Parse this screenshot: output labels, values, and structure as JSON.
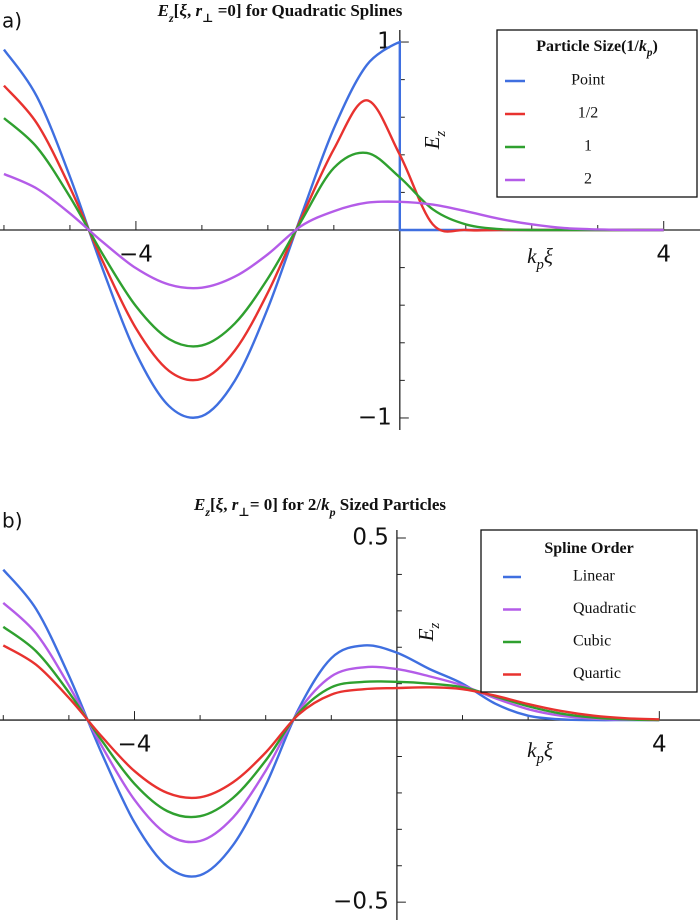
{
  "chart_data": [
    {
      "type": "line",
      "panel_label": "a)",
      "title": [
        {
          "text": "E",
          "italic": true
        },
        {
          "text": "z",
          "sub": true,
          "italic": true
        },
        {
          "text": "["
        },
        {
          "text": "ξ",
          "italic": true
        },
        {
          "text": ", "
        },
        {
          "text": "r",
          "italic": true
        },
        {
          "text": "⊥",
          "sub": true
        },
        {
          "text": " =0] for Quadratic Splines"
        }
      ],
      "x_label": [
        {
          "text": "k",
          "italic": true
        },
        {
          "text": "p",
          "sub": true,
          "italic": true
        },
        {
          "text": "ξ",
          "italic": true
        }
      ],
      "y_label": [
        {
          "text": "E",
          "italic": true
        },
        {
          "text": "z",
          "sub": true,
          "italic": true
        }
      ],
      "legend_title": [
        {
          "text": "Particle Size(1/"
        },
        {
          "text": "k",
          "italic": true
        },
        {
          "text": "p",
          "sub": true,
          "italic": true
        },
        {
          "text": ")"
        }
      ],
      "legend": "top-right",
      "xlim": [
        -6.06,
        4.55
      ],
      "ylim": [
        -1.064,
        1.064
      ],
      "xticks": [
        {
          "value": -4,
          "label": "−4"
        },
        4
      ],
      "yticks": [
        {
          "value": -1,
          "label": "−1"
        },
        1
      ],
      "minor_xticks": [
        -6,
        -5,
        -3,
        -2,
        -1,
        1,
        2,
        3
      ],
      "minor_yticks": [
        -0.8,
        -0.6,
        -0.4,
        -0.2,
        0.2,
        0.4,
        0.6,
        0.8
      ],
      "x": [
        -6,
        -5.5,
        -5,
        -4.5,
        -4,
        -3.5,
        -3,
        -2.5,
        -2,
        -1.5,
        -1,
        -0.5,
        0,
        0.5,
        1,
        1.5,
        2,
        2.5,
        3,
        3.5,
        4
      ],
      "series": [
        {
          "name": "Point",
          "color": "#3f6fe0",
          "x": [
            -6,
            -5.5,
            -5,
            -4.5,
            -4,
            -3.5,
            -3,
            -2.5,
            -2,
            -1.5,
            -1,
            -0.5,
            0,
            0,
            0.5,
            1,
            1.5,
            2,
            2.5,
            3,
            3.5,
            4
          ],
          "values": [
            0.96,
            0.709,
            0.284,
            -0.211,
            -0.654,
            -0.936,
            -0.99,
            -0.801,
            -0.416,
            0.071,
            0.54,
            0.878,
            1,
            0,
            0,
            0,
            0,
            0,
            0,
            0,
            0,
            0
          ]
        },
        {
          "name": "1/2",
          "color": "#e8322f",
          "values": [
            0.768,
            0.567,
            0.227,
            -0.169,
            -0.523,
            -0.749,
            -0.792,
            -0.641,
            -0.333,
            0.057,
            0.43,
            0.69,
            0.4,
            0.03,
            0,
            0,
            0,
            0,
            0,
            0,
            0
          ]
        },
        {
          "name": "1",
          "color": "#2fa02f",
          "values": [
            0.595,
            0.44,
            0.176,
            -0.131,
            -0.405,
            -0.58,
            -0.614,
            -0.497,
            -0.258,
            0.044,
            0.33,
            0.41,
            0.28,
            0.11,
            0.03,
            0.005,
            0,
            0,
            0,
            0,
            0
          ]
        },
        {
          "name": "2",
          "color": "#b45ce8",
          "values": [
            0.298,
            0.22,
            0.088,
            -0.065,
            -0.203,
            -0.29,
            -0.307,
            -0.248,
            -0.129,
            0.02,
            0.1,
            0.145,
            0.15,
            0.135,
            0.1,
            0.06,
            0.03,
            0.01,
            0.003,
            0,
            0
          ]
        }
      ]
    },
    {
      "type": "line",
      "panel_label": "b)",
      "title": [
        {
          "text": "E",
          "italic": true
        },
        {
          "text": "z",
          "sub": true,
          "italic": true
        },
        {
          "text": "["
        },
        {
          "text": "ξ",
          "italic": true
        },
        {
          "text": ", "
        },
        {
          "text": "r",
          "italic": true
        },
        {
          "text": "⊥",
          "sub": true
        },
        {
          "text": "= 0] for 2/"
        },
        {
          "text": "k",
          "italic": true
        },
        {
          "text": "p",
          "sub": true,
          "italic": true
        },
        {
          "text": " Sized Particles"
        }
      ],
      "x_label": [
        {
          "text": "k",
          "italic": true
        },
        {
          "text": "p",
          "sub": true,
          "italic": true
        },
        {
          "text": "ξ",
          "italic": true
        }
      ],
      "y_label": [
        {
          "text": "E",
          "italic": true
        },
        {
          "text": "z",
          "sub": true,
          "italic": true
        }
      ],
      "legend_title": [
        {
          "text": "Spline Order"
        }
      ],
      "legend": "top-right",
      "xlim": [
        -6.05,
        4.62
      ],
      "ylim": [
        -0.549,
        0.522
      ],
      "xticks": [
        {
          "value": -4,
          "label": "−4"
        },
        4
      ],
      "yticks": [
        {
          "value": -0.5,
          "label": "−0.5"
        },
        0.5
      ],
      "minor_xticks": [
        -6,
        -5,
        -3,
        -2,
        -1,
        1,
        2,
        3
      ],
      "minor_yticks": [
        -0.4,
        -0.3,
        -0.2,
        -0.1,
        0.1,
        0.2,
        0.3,
        0.4
      ],
      "x": [
        -6,
        -5.5,
        -5,
        -4.5,
        -4,
        -3.5,
        -3,
        -2.5,
        -2,
        -1.5,
        -1,
        -0.5,
        0,
        0.5,
        1,
        1.5,
        2,
        2.5,
        3,
        3.5,
        4
      ],
      "series": [
        {
          "name": "Linear",
          "color": "#3f6fe0",
          "values": [
            0.413,
            0.305,
            0.122,
            -0.091,
            -0.281,
            -0.402,
            -0.426,
            -0.344,
            -0.179,
            0.03,
            0.17,
            0.205,
            0.185,
            0.14,
            0.1,
            0.045,
            0.012,
            0.002,
            0,
            0,
            0
          ]
        },
        {
          "name": "Quadratic",
          "color": "#b45ce8",
          "values": [
            0.322,
            0.238,
            0.095,
            -0.071,
            -0.219,
            -0.314,
            -0.332,
            -0.268,
            -0.139,
            0.024,
            0.12,
            0.145,
            0.14,
            0.12,
            0.095,
            0.06,
            0.03,
            0.012,
            0.004,
            0.001,
            0
          ]
        },
        {
          "name": "Cubic",
          "color": "#2fa02f",
          "values": [
            0.256,
            0.189,
            0.076,
            -0.056,
            -0.175,
            -0.25,
            -0.264,
            -0.214,
            -0.111,
            0.019,
            0.09,
            0.105,
            0.105,
            0.1,
            0.09,
            0.065,
            0.038,
            0.018,
            0.007,
            0.002,
            0
          ]
        },
        {
          "name": "Quartic",
          "color": "#e8322f",
          "values": [
            0.205,
            0.152,
            0.061,
            -0.045,
            -0.14,
            -0.2,
            -0.212,
            -0.171,
            -0.089,
            0.015,
            0.07,
            0.085,
            0.088,
            0.09,
            0.085,
            0.067,
            0.044,
            0.025,
            0.012,
            0.005,
            0.002
          ]
        }
      ]
    }
  ]
}
